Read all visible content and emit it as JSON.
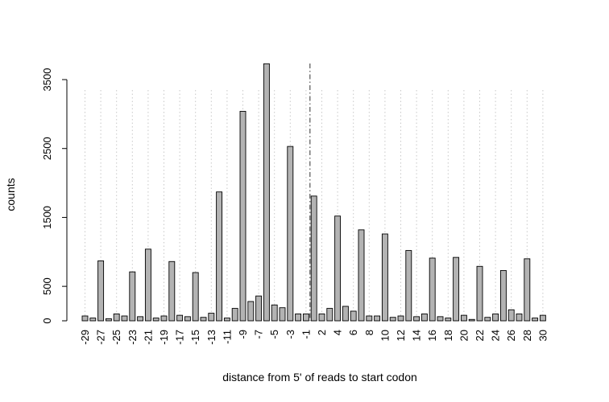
{
  "chart_data": {
    "type": "bar",
    "title": "",
    "xlabel": "distance from 5' of reads to start codon",
    "ylabel": "counts",
    "ylim": [
      0,
      3700
    ],
    "yticks": [
      0,
      500,
      1500,
      2500,
      3500
    ],
    "categories": [
      -29,
      -28,
      -27,
      -26,
      -25,
      -24,
      -23,
      -22,
      -21,
      -20,
      -19,
      -18,
      -17,
      -16,
      -15,
      -14,
      -13,
      -12,
      -11,
      -10,
      -9,
      -8,
      -7,
      -6,
      -5,
      -4,
      -3,
      -2,
      -1,
      1,
      2,
      3,
      4,
      5,
      6,
      7,
      8,
      9,
      10,
      11,
      12,
      13,
      14,
      15,
      16,
      17,
      18,
      19,
      20,
      21,
      22,
      23,
      24,
      25,
      26,
      27,
      28,
      29,
      30
    ],
    "labeled_ticks": [
      "-29",
      "-27",
      "-25",
      "-23",
      "-21",
      "-19",
      "-17",
      "-15",
      "-13",
      "-11",
      "-9",
      "-7",
      "-5",
      "-3",
      "-1",
      "2",
      "4",
      "6",
      "8",
      "10",
      "12",
      "14",
      "16",
      "18",
      "20",
      "22",
      "24",
      "26",
      "28",
      "30"
    ],
    "values": [
      70,
      40,
      870,
      30,
      100,
      70,
      710,
      60,
      1040,
      40,
      70,
      860,
      80,
      60,
      700,
      50,
      110,
      1870,
      40,
      180,
      3040,
      280,
      360,
      3730,
      230,
      190,
      2530,
      100,
      100,
      1810,
      100,
      180,
      1520,
      210,
      140,
      1320,
      70,
      70,
      1260,
      50,
      70,
      1020,
      60,
      100,
      910,
      60,
      40,
      920,
      80,
      20,
      790,
      50,
      100,
      730,
      160,
      100,
      900,
      40,
      80
    ],
    "bar_color": "#b3b3b3",
    "bar_border": "#000000",
    "gridlines": "vertical dotted at labeled ticks",
    "reference_line": {
      "x": -1,
      "style": "dash-dot"
    }
  }
}
